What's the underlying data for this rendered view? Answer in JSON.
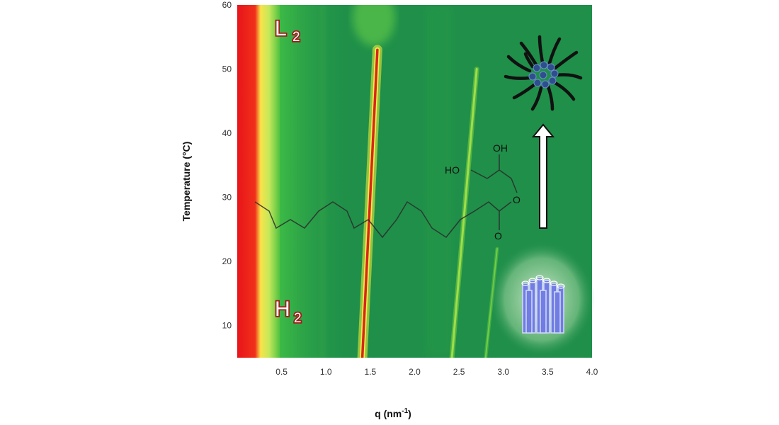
{
  "chart_data": {
    "type": "heatmap",
    "xlabel": "q (nm",
    "xlabel_sup": "-1",
    "xlabel_end": ")",
    "ylabel": "Temperature (°C)",
    "xlim": [
      0.0,
      4.0
    ],
    "ylim": [
      5,
      60
    ],
    "x_ticks": [
      {
        "value": 0.5,
        "label": "0.5"
      },
      {
        "value": 1.0,
        "label": "1.0"
      },
      {
        "value": 1.5,
        "label": "1.5"
      },
      {
        "value": 2.0,
        "label": "2.0"
      },
      {
        "value": 2.5,
        "label": "2.5"
      },
      {
        "value": 3.0,
        "label": "3.0"
      },
      {
        "value": 3.5,
        "label": "3.5"
      },
      {
        "value": 4.0,
        "label": "4.0"
      }
    ],
    "y_ticks": [
      {
        "value": 10,
        "label": "10"
      },
      {
        "value": 20,
        "label": "20"
      },
      {
        "value": 30,
        "label": "30"
      },
      {
        "value": 40,
        "label": "40"
      },
      {
        "value": 50,
        "label": "50"
      },
      {
        "value": 60,
        "label": "60"
      }
    ],
    "ridges": [
      {
        "q_start": 1.41,
        "t_start": 5,
        "q_end": 1.58,
        "t_end": 53,
        "kind": "strong"
      },
      {
        "q_start": 2.42,
        "t_start": 5,
        "q_end": 2.7,
        "t_end": 50,
        "kind": "weak"
      },
      {
        "q_start": 2.8,
        "t_start": 5,
        "q_end": 2.93,
        "t_end": 22,
        "kind": "faint"
      }
    ],
    "annotations": {
      "top_phase": {
        "main": "L",
        "sub": "2",
        "q": 0.46,
        "t": 56
      },
      "bottom_phase": {
        "main": "H",
        "sub": "2",
        "q": 0.46,
        "t": 11
      }
    },
    "chemical_labels": {
      "hydroxyl_top": "OH",
      "hydroxyl_left": "HO",
      "ester_o": "O",
      "carbonyl_o": "O"
    },
    "colors": {
      "background": "#1f8f49",
      "hot": "#e8141a",
      "warm": "#f4ee3a",
      "mid": "#7fd640",
      "ridge_core": "#d9261b",
      "label_stroke": "#a11a1a"
    }
  }
}
